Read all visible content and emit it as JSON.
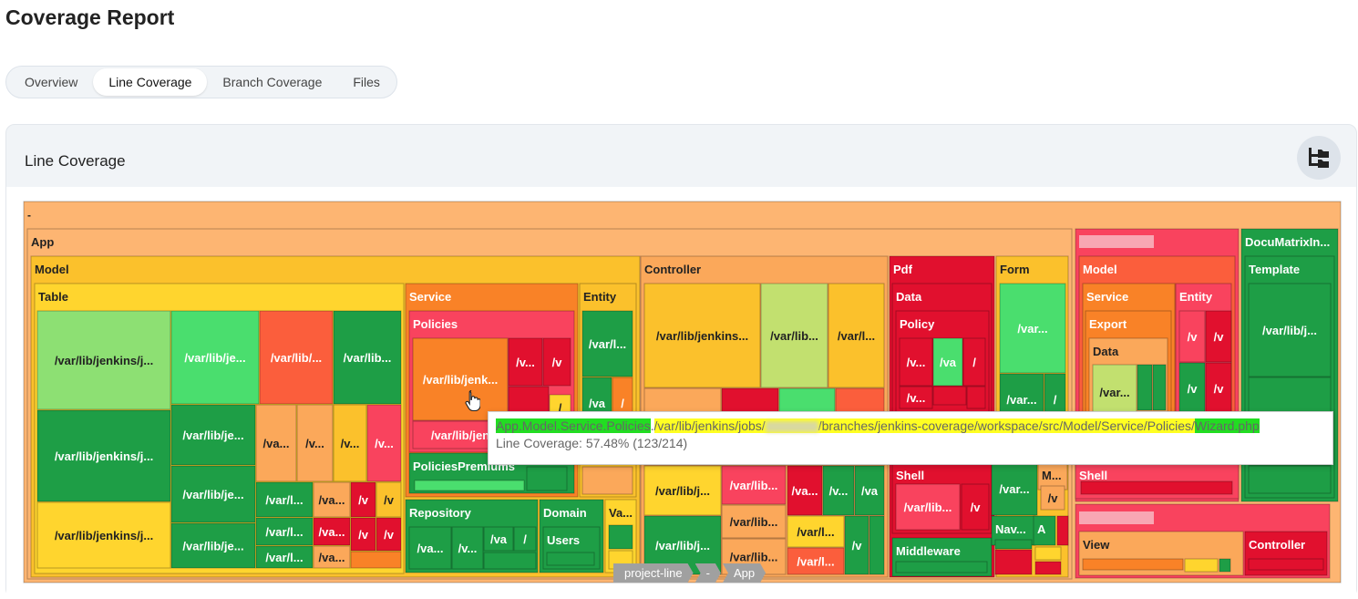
{
  "page": {
    "title": "Coverage Report"
  },
  "tabs": [
    {
      "label": "Overview",
      "active": false
    },
    {
      "label": "Line Coverage",
      "active": true
    },
    {
      "label": "Branch Coverage",
      "active": false
    },
    {
      "label": "Files",
      "active": false
    }
  ],
  "card": {
    "title": "Line Coverage",
    "tree_button_icon": "folder-tree-icon"
  },
  "colors": {
    "root_bg": "#fdb572",
    "green_dark": "#1e9e46",
    "green_mid": "#4ade6e",
    "green_light": "#8de073",
    "lime": "#c2e06f",
    "yellow": "#ffd52e",
    "yellow_orange": "#fbc12c",
    "orange_light": "#fba85a",
    "orange": "#f98227",
    "red_orange": "#fb5e3c",
    "pink_red": "#f9435e",
    "red": "#e1102e"
  },
  "treemap": {
    "root_label": "-",
    "labels": {
      "app": "App",
      "model": "Model",
      "table": "Table",
      "service": "Service",
      "policies": "Policies",
      "policies_premiums": "PoliciesPremiums",
      "repository": "Repository",
      "domain": "Domain",
      "users": "Users",
      "entity": "Entity",
      "va": "Va...",
      "controller": "Controller",
      "pdf": "Pdf",
      "data": "Data",
      "policy": "Policy",
      "shell": "Shell",
      "middleware": "Middleware",
      "form": "Form",
      "nav": "Nav...",
      "a": "A",
      "m": "M...",
      "model2": "Model",
      "service2": "Service",
      "export": "Export",
      "data2": "Data",
      "entity2": "Entity",
      "shell2": "Shell",
      "view": "View",
      "controller2": "Controller",
      "documatrix": "DocuMatrixIn...",
      "template": "Template"
    },
    "file_labels": {
      "f_long": "/var/lib/jenkins/j...",
      "f_jenk": "/var/lib/jenk...",
      "f_jenkins_dots": "/var/lib/jenkins...",
      "f_je": "/var/lib/je...",
      "f_lib_dots": "/var/lib/...",
      "f_lib": "/var/lib...",
      "f_l": "/var/l...",
      "f_slash_l": "/var/l...",
      "f_va": "/va...",
      "f_vdot": "/v...",
      "f_v": "/v",
      "f_va2": "/va",
      "f_slash": "/",
      "f_var": "/var...",
      "f_j": "/var/lib/j...",
      "f_jen": "/var/lib/jen"
    }
  },
  "tooltip": {
    "namespace": "App.Model.Service.Policies",
    "path_dot": ".",
    "path_prefix": "/var/lib/jenkins/jobs/",
    "path_suffix": "/branches/jenkins-coverage/workspace/src/Model/Service/Policies/",
    "file_name": "Wizard.php",
    "coverage_text": "Line Coverage: 57.48% (123/214)"
  },
  "breadcrumbs": [
    "project-line",
    "-",
    "App"
  ]
}
